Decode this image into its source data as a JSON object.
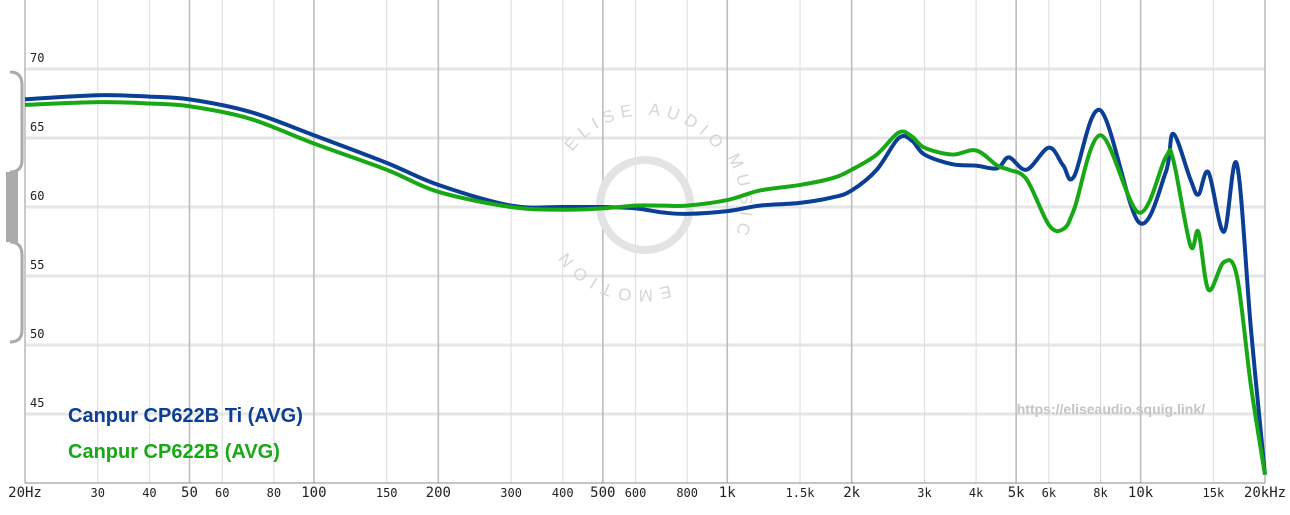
{
  "chart_data": {
    "type": "line",
    "xscale": "log",
    "grid": true,
    "x": [
      20,
      30,
      40,
      50,
      70,
      100,
      150,
      200,
      300,
      400,
      500,
      600,
      700,
      800,
      1000,
      1200,
      1500,
      1800,
      2000,
      2300,
      2600,
      2800,
      3000,
      3500,
      4000,
      4500,
      4800,
      5300,
      6000,
      6500,
      6900,
      8000,
      9900,
      11500,
      12000,
      13200,
      13800,
      14600,
      15900,
      17100,
      18500,
      20000
    ],
    "series": [
      {
        "name": "Canpur CP622B Ti (AVG)",
        "color": "#0b3f94",
        "values": [
          67.8,
          68.1,
          68.0,
          67.8,
          66.9,
          65.2,
          63.2,
          61.6,
          60.1,
          60.0,
          60.0,
          59.9,
          59.6,
          59.5,
          59.7,
          60.1,
          60.3,
          60.7,
          61.2,
          62.7,
          65.0,
          64.8,
          63.8,
          63.1,
          63.0,
          62.8,
          63.6,
          62.7,
          64.3,
          63.0,
          62.2,
          67.0,
          58.9,
          62.5,
          65.3,
          62.0,
          60.9,
          62.5,
          58.2,
          63.1,
          51.1,
          40.6
        ]
      },
      {
        "name": "Canpur CP622B (AVG)",
        "color": "#18a815",
        "values": [
          67.4,
          67.6,
          67.5,
          67.3,
          66.4,
          64.6,
          62.7,
          61.1,
          60.0,
          59.8,
          59.9,
          60.1,
          60.1,
          60.1,
          60.5,
          61.2,
          61.6,
          62.1,
          62.7,
          63.8,
          65.4,
          65.1,
          64.3,
          63.8,
          64.1,
          63.0,
          62.7,
          62.0,
          58.7,
          58.4,
          59.8,
          65.2,
          59.6,
          63.6,
          63.4,
          57.2,
          58.2,
          54.0,
          56.0,
          55.0,
          47.0,
          40.6
        ]
      }
    ],
    "xlim": [
      20,
      20000
    ],
    "ylim": [
      40,
      75
    ],
    "xticks": [
      {
        "value": 20,
        "label": "20Hz"
      },
      30,
      40,
      50,
      60,
      80,
      100,
      150,
      200,
      300,
      400,
      500,
      600,
      800,
      {
        "value": 1000,
        "label": "1k"
      },
      {
        "value": 1500,
        "label": "1.5k"
      },
      {
        "value": 2000,
        "label": "2k"
      },
      {
        "value": 3000,
        "label": "3k"
      },
      {
        "value": 4000,
        "label": "4k"
      },
      {
        "value": 5000,
        "label": "5k"
      },
      {
        "value": 6000,
        "label": "6k"
      },
      {
        "value": 8000,
        "label": "8k"
      },
      {
        "value": 10000,
        "label": "10k"
      },
      {
        "value": 15000,
        "label": "15k"
      },
      {
        "value": 20000,
        "label": "20kHz"
      }
    ],
    "yticks": [
      45,
      50,
      55,
      60,
      65,
      70
    ],
    "source": "https://eliseaudio.squig.link/",
    "watermark": [
      "ELISE AUDIO",
      "MUSIC",
      "EMOTION"
    ]
  }
}
